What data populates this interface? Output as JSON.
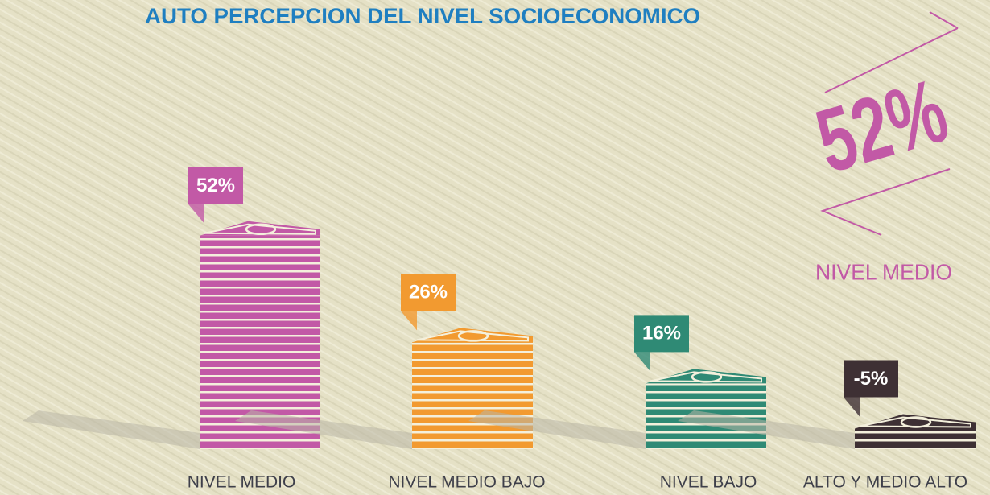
{
  "chart_data": {
    "type": "bar",
    "title": "AUTO PERCEPCION DEL NIVEL SOCIOECONOMICO",
    "categories": [
      "NIVEL MEDIO",
      "NIVEL MEDIO BAJO",
      "NIVEL BAJO",
      "ALTO Y MEDIO ALTO"
    ],
    "values": [
      52,
      26,
      16,
      -5
    ],
    "value_labels": [
      "52%",
      "26%",
      "16%",
      "-5%"
    ],
    "colors": [
      "#c259a6",
      "#f29a30",
      "#2f8a75",
      "#3e3034"
    ]
  }
}
